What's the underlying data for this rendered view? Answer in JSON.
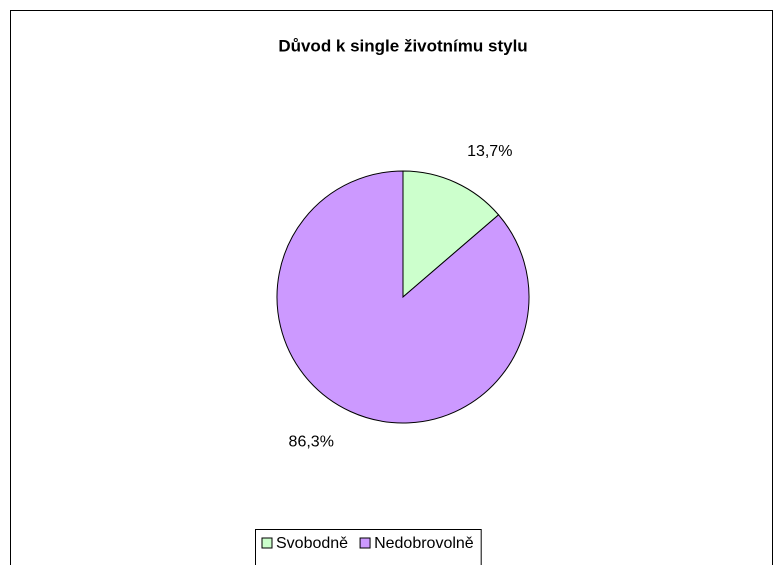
{
  "chart_data": {
    "type": "pie",
    "title": "Důvod k single životnímu stylu",
    "categories": [
      "Svobodně",
      "Nedobrovolně"
    ],
    "values": [
      13.7,
      86.3
    ],
    "value_labels": [
      "13,7%",
      "86,3%"
    ],
    "colors": [
      "#ccffcc",
      "#cc99ff"
    ],
    "legend": "bottom"
  }
}
